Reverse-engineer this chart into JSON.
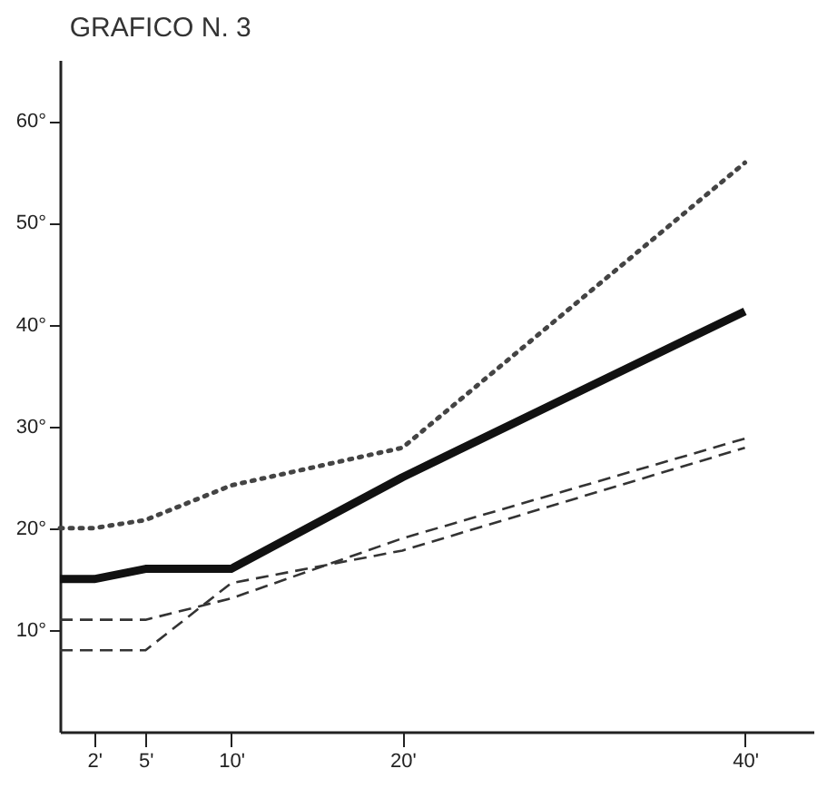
{
  "chart_data": {
    "type": "line",
    "title": "GRAFICO N. 3",
    "x": [
      0,
      2,
      5,
      10,
      20,
      40
    ],
    "series": [
      {
        "color": "#444444",
        "line_style": "dotted",
        "values": [
          20,
          20,
          20.8,
          24.2,
          27.9,
          55.9
        ]
      },
      {
        "color": "#111111",
        "line_style": "solid",
        "values": [
          15,
          15,
          16,
          16,
          25,
          41.3
        ]
      },
      {
        "color": "#333333",
        "line_style": "dashed",
        "values": [
          11,
          11,
          11,
          13.1,
          19,
          28.8
        ]
      },
      {
        "color": "#333333",
        "line_style": "dashed",
        "values": [
          8,
          8,
          8,
          14.6,
          17.8,
          27.9
        ]
      }
    ],
    "xlim": [
      0,
      44
    ],
    "ylim": [
      0,
      66
    ],
    "xticks": [
      {
        "value": 2,
        "label": "2'"
      },
      {
        "value": 5,
        "label": "5'"
      },
      {
        "value": 10,
        "label": "10'"
      },
      {
        "value": 20,
        "label": "20'"
      },
      {
        "value": 40,
        "label": "40'"
      }
    ],
    "yticks": [
      {
        "value": 10,
        "label": "10°"
      },
      {
        "value": 20,
        "label": "20°"
      },
      {
        "value": 30,
        "label": "30°"
      },
      {
        "value": 40,
        "label": "40°"
      },
      {
        "value": 50,
        "label": "50°"
      },
      {
        "value": 60,
        "label": "60°"
      }
    ],
    "grid": false,
    "marker": "none"
  }
}
